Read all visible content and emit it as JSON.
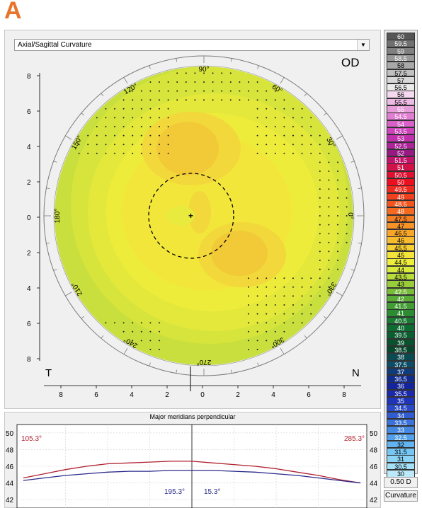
{
  "panel_label": "A",
  "map": {
    "type_select": "Axial/Sagittal Curvature",
    "eye": "OD",
    "corner_left": "T",
    "corner_right": "N",
    "left_axis_ticks": [
      "8",
      "6",
      "4",
      "2",
      "0",
      "2",
      "4",
      "6",
      "8"
    ],
    "bottom_axis_ticks": [
      "8",
      "6",
      "4",
      "2",
      "0",
      "2",
      "4",
      "6",
      "8"
    ],
    "angle_labels": [
      {
        "deg": 0,
        "text": "0°"
      },
      {
        "deg": 30,
        "text": "30°"
      },
      {
        "deg": 60,
        "text": "60°"
      },
      {
        "deg": 90,
        "text": "90°"
      },
      {
        "deg": 120,
        "text": "120°"
      },
      {
        "deg": 150,
        "text": "150°"
      },
      {
        "deg": 180,
        "text": "180°"
      },
      {
        "deg": 210,
        "text": "210°"
      },
      {
        "deg": 240,
        "text": "240°"
      },
      {
        "deg": 270,
        "text": "270°"
      },
      {
        "deg": 300,
        "text": "300°"
      },
      {
        "deg": 330,
        "text": "330°"
      }
    ]
  },
  "legend": {
    "entries": [
      {
        "label": "60",
        "color": "#555555",
        "text_color": "#ffffff"
      },
      {
        "label": "59.5",
        "color": "#707070",
        "text_color": "#ffffff"
      },
      {
        "label": "59",
        "color": "#808080",
        "text_color": "#ffffff"
      },
      {
        "label": "58.5",
        "color": "#989898",
        "text_color": "#ffffff"
      },
      {
        "label": "58",
        "color": "#a8a8a8",
        "text_color": "#000000"
      },
      {
        "label": "57.5",
        "color": "#c0c0c0",
        "text_color": "#000000"
      },
      {
        "label": "57",
        "color": "#d8d8d8",
        "text_color": "#000000"
      },
      {
        "label": "56.5",
        "color": "#ebebeb",
        "text_color": "#000000"
      },
      {
        "label": "56",
        "color": "#f5d9ef",
        "text_color": "#000000"
      },
      {
        "label": "55.5",
        "color": "#eebbe5",
        "text_color": "#000000"
      },
      {
        "label": "55",
        "color": "#e89ddb",
        "text_color": "#ffffff"
      },
      {
        "label": "54.5",
        "color": "#e27ed2",
        "text_color": "#ffffff"
      },
      {
        "label": "54",
        "color": "#d960c8",
        "text_color": "#ffffff"
      },
      {
        "label": "53.5",
        "color": "#cf44bc",
        "text_color": "#ffffff"
      },
      {
        "label": "53",
        "color": "#c030ad",
        "text_color": "#ffffff"
      },
      {
        "label": "52.5",
        "color": "#ad2399",
        "text_color": "#ffffff"
      },
      {
        "label": "52",
        "color": "#971a84",
        "text_color": "#ffffff"
      },
      {
        "label": "51.5",
        "color": "#c0146a",
        "text_color": "#ffffff"
      },
      {
        "label": "51",
        "color": "#d11249",
        "text_color": "#ffffff"
      },
      {
        "label": "50.5",
        "color": "#e01030",
        "text_color": "#ffffff"
      },
      {
        "label": "50",
        "color": "#ea1020",
        "text_color": "#ffffff"
      },
      {
        "label": "49.5",
        "color": "#ee2a20",
        "text_color": "#ffffff"
      },
      {
        "label": "49",
        "color": "#f0401e",
        "text_color": "#ffffff"
      },
      {
        "label": "48.5",
        "color": "#f2561e",
        "text_color": "#ffffff"
      },
      {
        "label": "48",
        "color": "#f46a20",
        "text_color": "#ffffff"
      },
      {
        "label": "47.5",
        "color": "#f57e22",
        "text_color": "#000000"
      },
      {
        "label": "47",
        "color": "#f79226",
        "text_color": "#000000"
      },
      {
        "label": "46.5",
        "color": "#f8a62a",
        "text_color": "#000000"
      },
      {
        "label": "46",
        "color": "#f9bb2e",
        "text_color": "#000000"
      },
      {
        "label": "45.5",
        "color": "#f8cf32",
        "text_color": "#000000"
      },
      {
        "label": "45",
        "color": "#f4e33a",
        "text_color": "#000000"
      },
      {
        "label": "44.5",
        "color": "#eeee3c",
        "text_color": "#000000"
      },
      {
        "label": "44",
        "color": "#d8ea3c",
        "text_color": "#000000"
      },
      {
        "label": "43.5",
        "color": "#b8dc3c",
        "text_color": "#000000"
      },
      {
        "label": "43",
        "color": "#98cc3a",
        "text_color": "#000000"
      },
      {
        "label": "42.5",
        "color": "#78bc38",
        "text_color": "#ffffff"
      },
      {
        "label": "42",
        "color": "#5aac36",
        "text_color": "#ffffff"
      },
      {
        "label": "41.5",
        "color": "#429c34",
        "text_color": "#ffffff"
      },
      {
        "label": "41",
        "color": "#2c8c32",
        "text_color": "#ffffff"
      },
      {
        "label": "40.5",
        "color": "#1a7c32",
        "text_color": "#ffffff"
      },
      {
        "label": "40",
        "color": "#0e6c32",
        "text_color": "#ffffff"
      },
      {
        "label": "39.5",
        "color": "#0a5e30",
        "text_color": "#ffffff"
      },
      {
        "label": "39",
        "color": "#08522e",
        "text_color": "#ffffff"
      },
      {
        "label": "38.5",
        "color": "#06482c",
        "text_color": "#ffffff"
      },
      {
        "label": "38",
        "color": "#0a4a50",
        "text_color": "#ffffff"
      },
      {
        "label": "37.5",
        "color": "#0c4c66",
        "text_color": "#ffffff"
      },
      {
        "label": "37",
        "color": "#103c7c",
        "text_color": "#ffffff"
      },
      {
        "label": "36.5",
        "color": "#122c8c",
        "text_color": "#ffffff"
      },
      {
        "label": "36",
        "color": "#14249a",
        "text_color": "#ffffff"
      },
      {
        "label": "35.5",
        "color": "#1a28aa",
        "text_color": "#ffffff"
      },
      {
        "label": "35",
        "color": "#2034b8",
        "text_color": "#ffffff"
      },
      {
        "label": "34.5",
        "color": "#2848c4",
        "text_color": "#ffffff"
      },
      {
        "label": "34",
        "color": "#305cd0",
        "text_color": "#ffffff"
      },
      {
        "label": "33.5",
        "color": "#3a72da",
        "text_color": "#ffffff"
      },
      {
        "label": "33",
        "color": "#4488e2",
        "text_color": "#ffffff"
      },
      {
        "label": "32.5",
        "color": "#52a0ea",
        "text_color": "#ffffff"
      },
      {
        "label": "32",
        "color": "#62b4f0",
        "text_color": "#000000"
      },
      {
        "label": "31.5",
        "color": "#76c6f4",
        "text_color": "#000000"
      },
      {
        "label": "31",
        "color": "#8cd4f6",
        "text_color": "#000000"
      },
      {
        "label": "30.5",
        "color": "#a4e0f8",
        "text_color": "#000000"
      },
      {
        "label": "30",
        "color": "#bceafa",
        "text_color": "#000000"
      }
    ],
    "step_button": "0.50 D",
    "mode_button": "Curvature"
  },
  "plot": {
    "title": "Major meridians perpendicular",
    "y_ticks": [
      "50",
      "48",
      "46",
      "44",
      "42"
    ],
    "label_top_left": "105.3°",
    "label_top_right": "285.3°",
    "label_bottom_left": "195.3°",
    "label_bottom_right": "15.3°",
    "colors": {
      "red": "#b0202e",
      "blue": "#2a2a8c"
    }
  },
  "chart_data": {
    "type": "line",
    "title": "Major meridians perpendicular",
    "xlabel": "",
    "ylabel": "",
    "ylim": [
      41,
      51
    ],
    "x": [
      -8,
      -7,
      -6,
      -5,
      -4,
      -3,
      -2,
      -1,
      0,
      1,
      2,
      3,
      4,
      5,
      6,
      7,
      8
    ],
    "series": [
      {
        "name": "105.3° / 285.3°",
        "values": [
          44.6,
          45.1,
          45.6,
          46.0,
          46.3,
          46.4,
          46.5,
          46.6,
          46.6,
          46.4,
          46.2,
          46.0,
          45.7,
          45.3,
          44.9,
          44.4,
          44.0
        ]
      },
      {
        "name": "195.3° / 15.3°",
        "values": [
          44.3,
          44.6,
          44.9,
          45.1,
          45.3,
          45.4,
          45.4,
          45.5,
          45.5,
          45.5,
          45.4,
          45.3,
          45.1,
          44.9,
          44.6,
          44.3,
          44.0
        ]
      }
    ]
  }
}
